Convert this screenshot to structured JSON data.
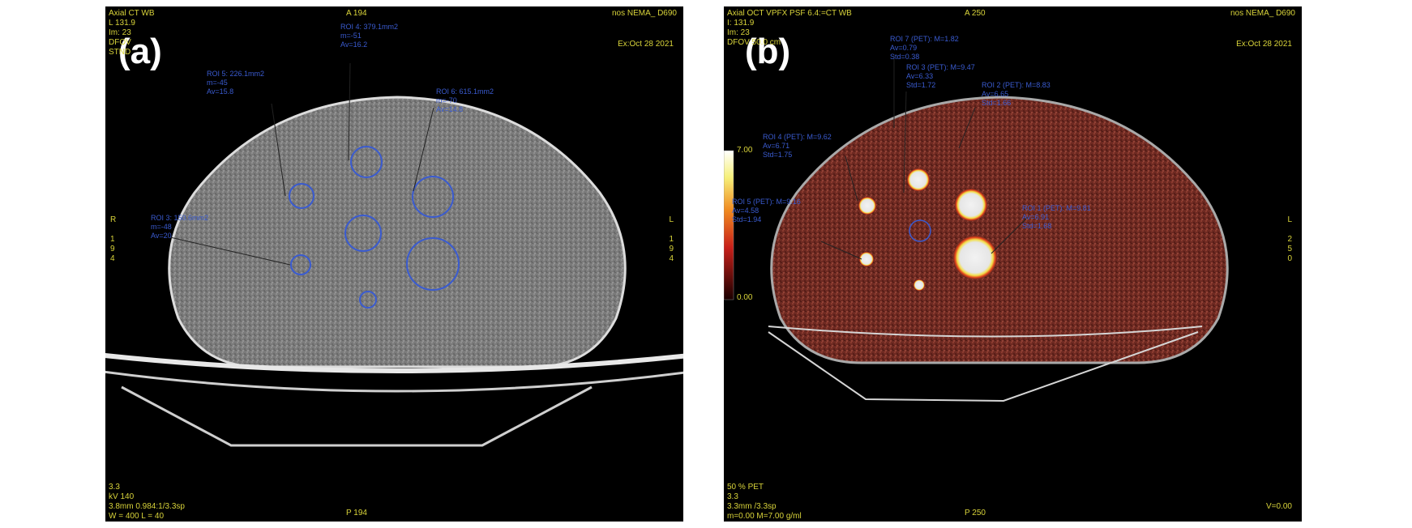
{
  "panel_a": {
    "label": "(a)",
    "top_left": [
      "Axial CT WB",
      "L 131.9",
      "Im: 23",
      "DFOV",
      "STND"
    ],
    "top_center": "A 194",
    "top_right": "nos NEMA_ D690",
    "date": "Ex:Oct 28 2021",
    "left_side": [
      "R",
      "",
      "1",
      "9",
      "4"
    ],
    "right_side": [
      "L",
      "",
      "1",
      "9",
      "4"
    ],
    "bottom_left": [
      "3.3",
      "kV 140",
      "3.8mm 0.984:1/3.3sp",
      "W = 400 L = 40"
    ],
    "bottom_center": "P 194",
    "rois": [
      {
        "name": "roi-4",
        "lines": [
          "ROI 4: 379.1mm2",
          "m=-51",
          "Av=16.2"
        ]
      },
      {
        "name": "roi-5",
        "lines": [
          "ROI 5: 226.1mm2",
          "m=-45",
          "Av=15.8"
        ]
      },
      {
        "name": "roi-6",
        "lines": [
          "ROI 6: 615.1mm2",
          "m=-70",
          "Av=14.8"
        ]
      },
      {
        "name": "roi-3",
        "lines": [
          "ROI 3: 150.6mm2",
          "m=-48",
          "Av=20"
        ]
      }
    ]
  },
  "panel_b": {
    "label": "(b)",
    "top_left": [
      "Axial OCT VPFX PSF 6.4:=CT WB",
      "I: 131.9",
      "Im: 23",
      "DFOV 50.0 cm"
    ],
    "top_center": "A 250",
    "top_right": "nos NEMA_ D690",
    "date": "Ex:Oct 28 2021",
    "colorbar_max": "7.00",
    "colorbar_min": "0.00",
    "right_side": [
      "L",
      "",
      "2",
      "5",
      "0"
    ],
    "bottom_left": [
      "50 % PET",
      "3.3",
      "3.3mm /3.3sp",
      "m=0.00 M=7.00 g/ml"
    ],
    "bottom_center": "P 250",
    "bottom_right": "V=0.00",
    "rois": [
      {
        "name": "roi-7-pet",
        "lines": [
          "ROI 7 (PET): M=1.82",
          "Av=0.79",
          "Std=0.38"
        ]
      },
      {
        "name": "roi-3-pet",
        "lines": [
          "ROI 3 (PET): M=9.47",
          "Av=6.33",
          "Std=1.72"
        ]
      },
      {
        "name": "roi-2-pet",
        "lines": [
          "ROI 2 (PET): M=8.83",
          "Av=6.65",
          "Std=1.66"
        ]
      },
      {
        "name": "roi-4-pet",
        "lines": [
          "ROI 4 (PET): M=9.62",
          "Av=6.71",
          "Std=1.75"
        ]
      },
      {
        "name": "roi-5-pet",
        "lines": [
          "ROI 5 (PET): M=9.16",
          "Av=4.58",
          "Std=1.94"
        ]
      },
      {
        "name": "roi-1-pet",
        "lines": [
          "ROI 1 (PET): M=9.81",
          "Av=6.91",
          "Std=1.68"
        ]
      }
    ]
  }
}
